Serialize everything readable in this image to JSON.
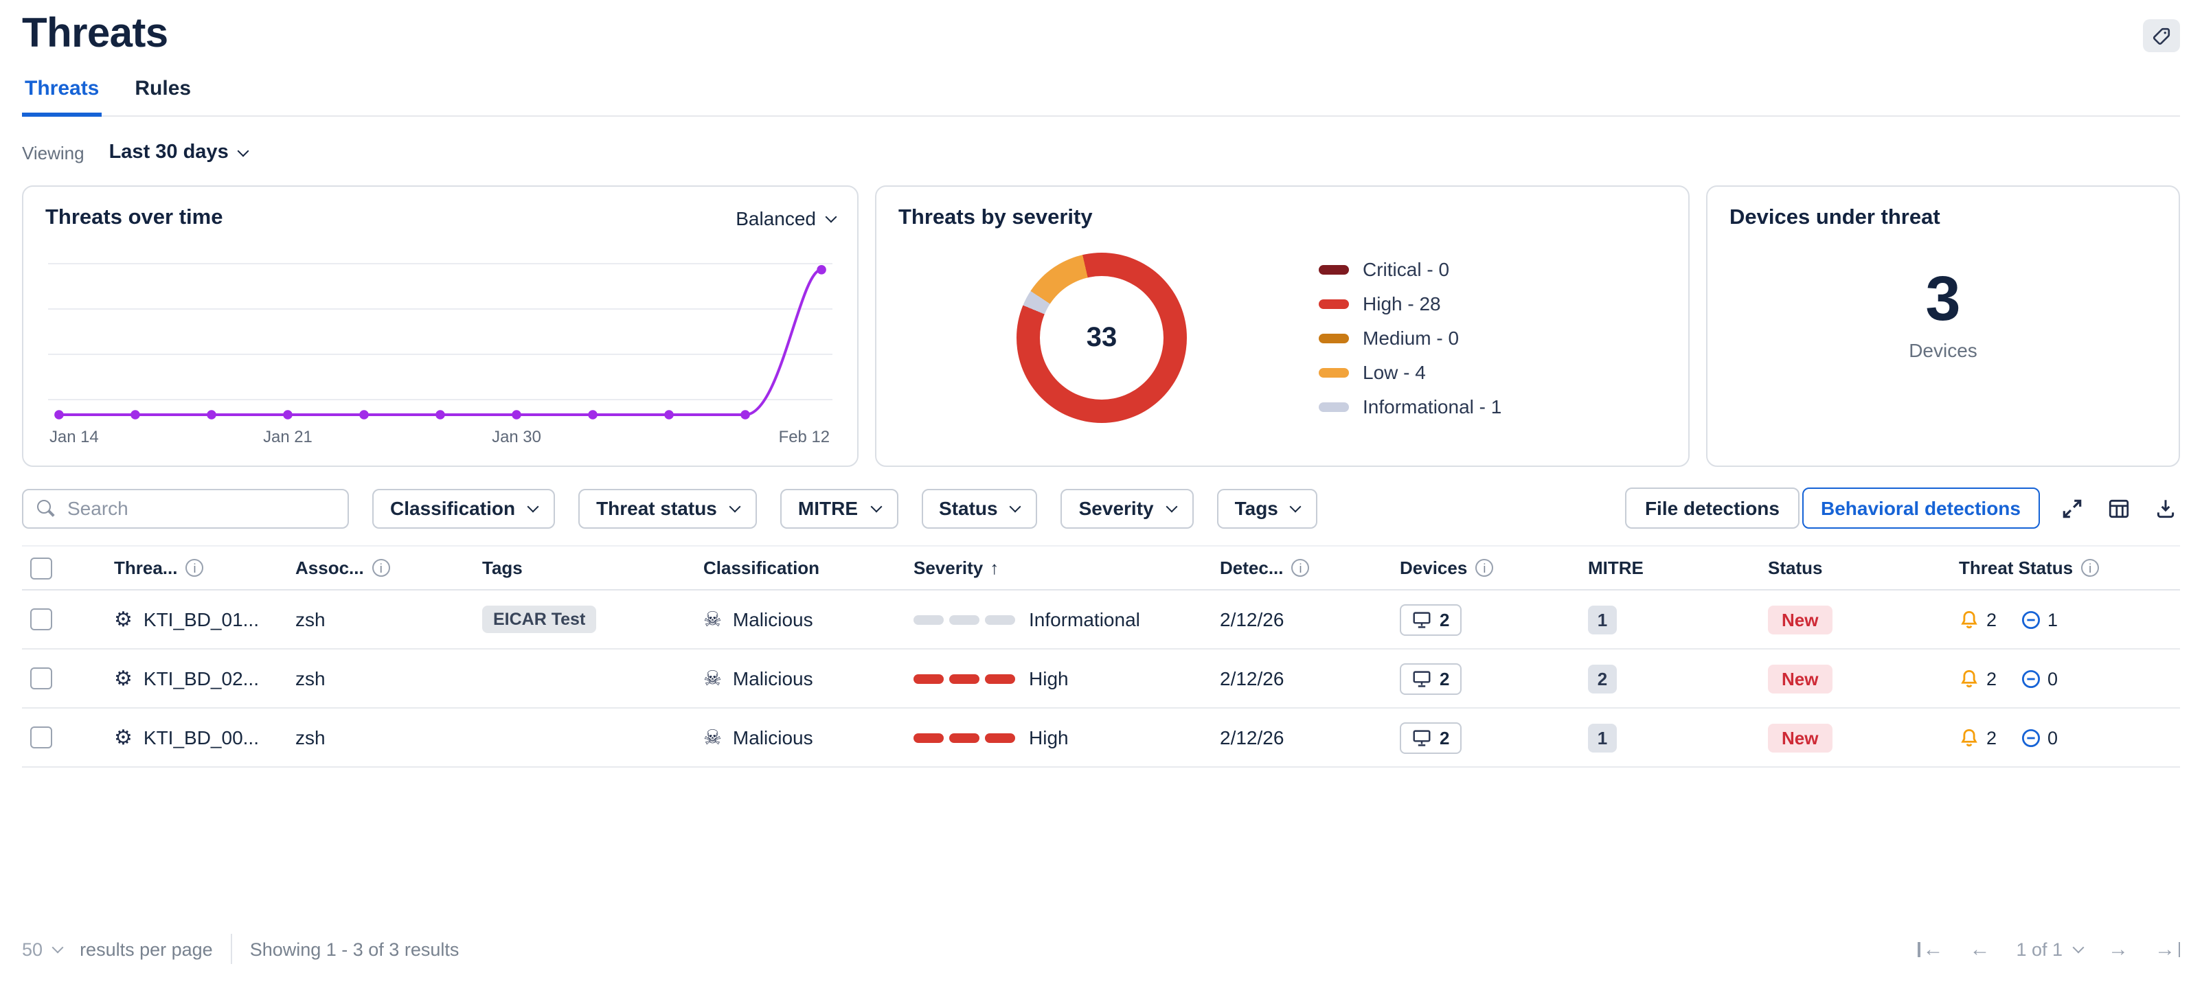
{
  "header": {
    "title": "Threats"
  },
  "tabs": [
    {
      "label": "Threats",
      "active": true
    },
    {
      "label": "Rules",
      "active": false
    }
  ],
  "viewing": {
    "label": "Viewing",
    "value": "Last 30 days"
  },
  "cards": {
    "over_time": {
      "title": "Threats over time",
      "mode_selector": "Balanced"
    },
    "severity": {
      "title": "Threats by severity",
      "total": "33",
      "legend": [
        {
          "label": "Critical - 0",
          "color": "#7E1A20"
        },
        {
          "label": "High - 28",
          "color": "#D8382E"
        },
        {
          "label": "Medium - 0",
          "color": "#C97A14"
        },
        {
          "label": "Low - 4",
          "color": "#F2A33B"
        },
        {
          "label": "Informational - 1",
          "color": "#C9CFE0"
        }
      ]
    },
    "devices": {
      "title": "Devices under threat",
      "count": "3",
      "unit": "Devices"
    }
  },
  "chart_data": [
    {
      "type": "line",
      "title": "Threats over time",
      "x_tick_labels": [
        "Jan 14",
        "Jan 21",
        "Jan 30",
        "Feb 12"
      ],
      "x_tick_points": [
        0,
        3,
        6,
        10
      ],
      "values": [
        0,
        0,
        0,
        0,
        0,
        0,
        0,
        0,
        0,
        0,
        33
      ],
      "ylim": [
        0,
        35
      ],
      "grid": true,
      "line_color": "#A12BE8"
    },
    {
      "type": "pie",
      "title": "Threats by severity",
      "labels": [
        "Critical",
        "High",
        "Medium",
        "Low",
        "Informational"
      ],
      "values": [
        0,
        28,
        0,
        4,
        1
      ],
      "colors": [
        "#7E1A20",
        "#D8382E",
        "#C97A14",
        "#F2A33B",
        "#C9CFE0"
      ],
      "total": 33,
      "center_label": "33",
      "rotation_deg": 347,
      "draw_order": [
        0,
        1,
        2,
        4,
        3
      ],
      "legend_position": "right"
    }
  ],
  "filters": {
    "search_placeholder": "Search",
    "dropdowns": [
      "Classification",
      "Threat status",
      "MITRE",
      "Status",
      "Severity",
      "Tags"
    ],
    "view_buttons": [
      {
        "label": "File detections",
        "active": false
      },
      {
        "label": "Behavioral detections",
        "active": true
      }
    ]
  },
  "table": {
    "columns": [
      {
        "key": "select",
        "label": "",
        "type": "checkbox"
      },
      {
        "key": "name",
        "label": "Threa...",
        "info": true
      },
      {
        "key": "associated",
        "label": "Assoc...",
        "info": true
      },
      {
        "key": "tags",
        "label": "Tags"
      },
      {
        "key": "classification",
        "label": "Classification"
      },
      {
        "key": "severity",
        "label": "Severity",
        "sorted": "asc"
      },
      {
        "key": "detected",
        "label": "Detec...",
        "info": true
      },
      {
        "key": "devices",
        "label": "Devices",
        "info": true
      },
      {
        "key": "mitre",
        "label": "MITRE"
      },
      {
        "key": "status",
        "label": "Status"
      },
      {
        "key": "threat_status",
        "label": "Threat Status",
        "info": true
      }
    ],
    "rows": [
      {
        "name": "KTI_BD_01...",
        "associated": "zsh",
        "tags": [
          "EICAR Test"
        ],
        "classification": "Malicious",
        "severity": "Informational",
        "severity_level": "informational",
        "detected": "2/12/26",
        "devices": "2",
        "mitre": "1",
        "status": "New",
        "alerts": "2",
        "blocked": "1"
      },
      {
        "name": "KTI_BD_02...",
        "associated": "zsh",
        "tags": [],
        "classification": "Malicious",
        "severity": "High",
        "severity_level": "high",
        "detected": "2/12/26",
        "devices": "2",
        "mitre": "2",
        "status": "New",
        "alerts": "2",
        "blocked": "0"
      },
      {
        "name": "KTI_BD_00...",
        "associated": "zsh",
        "tags": [],
        "classification": "Malicious",
        "severity": "High",
        "severity_level": "high",
        "detected": "2/12/26",
        "devices": "2",
        "mitre": "1",
        "status": "New",
        "alerts": "2",
        "blocked": "0"
      }
    ]
  },
  "footer": {
    "page_size": "50",
    "per_page_label": "results per page",
    "showing": "Showing 1 - 3 of 3 results",
    "page_indicator": "1 of 1"
  },
  "icons": {
    "gear": "⚙",
    "skull": "☠",
    "sort_asc": "↑",
    "info": "i",
    "prev": "←",
    "next": "→"
  },
  "colors": {
    "accent_blue": "#1663D6",
    "title_text": "#13233F",
    "body_text": "#17273F",
    "muted_text": "#65707F",
    "border": "#C7CDD6",
    "line_purple": "#A12BE8",
    "bell_orange": "#F59E0B",
    "severity_high": "#D8382E",
    "severity_empty_bar": "#D9DDE4",
    "status_new_bg": "#FBE2E5",
    "status_new_text": "#CE2A36",
    "icon_dark": "#2A3550"
  }
}
